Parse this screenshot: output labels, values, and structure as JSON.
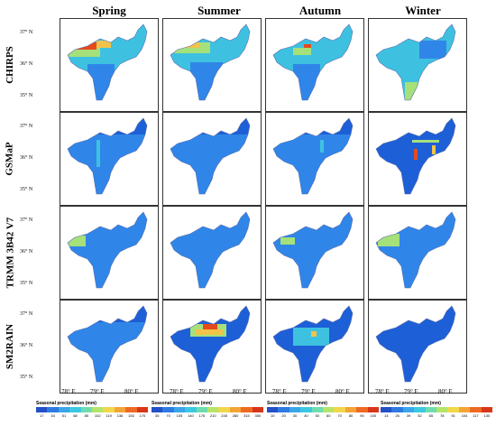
{
  "seasons": [
    "Spring",
    "Summer",
    "Autumn",
    "Winter"
  ],
  "products": [
    "CHIRPS",
    "GSMaP",
    "TRMM 3B42 V7",
    "SM2RAIN"
  ],
  "lat_labels": [
    "37° N",
    "36° N",
    "35° N"
  ],
  "lon_labels": [
    "78° E",
    "79° E",
    "80° E"
  ],
  "colors": {
    "low": "#1d5fd6",
    "mid_low": "#2f86e8",
    "mid": "#3ec1e0",
    "mid_high": "#a5e07a",
    "high": "#f2c34a",
    "peak": "#e64a1c"
  },
  "legends": [
    {
      "title": "Seasonal precipitation (mm)",
      "ticks": [
        "17",
        "34",
        "51",
        "68",
        "85",
        "102",
        "119",
        "136",
        "153",
        "170"
      ]
    },
    {
      "title": "Seasonal precipitation (mm)",
      "ticks": [
        "35",
        "70",
        "105",
        "140",
        "175",
        "210",
        "245",
        "280",
        "315",
        "350"
      ]
    },
    {
      "title": "Seasonal precipitation (mm)",
      "ticks": [
        "10",
        "20",
        "30",
        "40",
        "50",
        "60",
        "70",
        "80",
        "90",
        "100"
      ]
    },
    {
      "title": "Seasonal precipitation (mm)",
      "ticks": [
        "13",
        "26",
        "39",
        "52",
        "65",
        "78",
        "91",
        "104",
        "117",
        "130"
      ]
    }
  ],
  "legend_colors": [
    "#2350c8",
    "#2e7ae2",
    "#3aa6ea",
    "#3cc8e0",
    "#6fdcb0",
    "#b4e46a",
    "#f0d84a",
    "#f4a436",
    "#ee6a22",
    "#d8361a"
  ]
}
